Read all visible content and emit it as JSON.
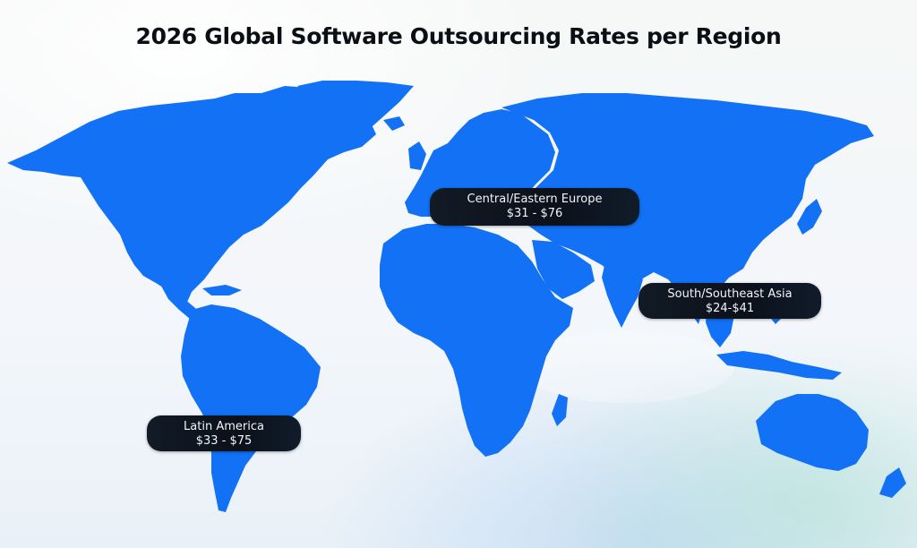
{
  "title": "2026 Global Software Outsourcing Rates per Region",
  "colors": {
    "land": "#1271f5",
    "label_bg": "#0a111b",
    "label_text": "#f2f5f9",
    "title_text": "#0b0f14"
  },
  "regions": [
    {
      "id": "europe",
      "name": "Central/Eastern Europe",
      "rate": "$31 - $76"
    },
    {
      "id": "asia",
      "name": "South/Southeast Asia",
      "rate": "$24-$41"
    },
    {
      "id": "latam",
      "name": "Latin America",
      "rate": "$33 - $75"
    }
  ]
}
